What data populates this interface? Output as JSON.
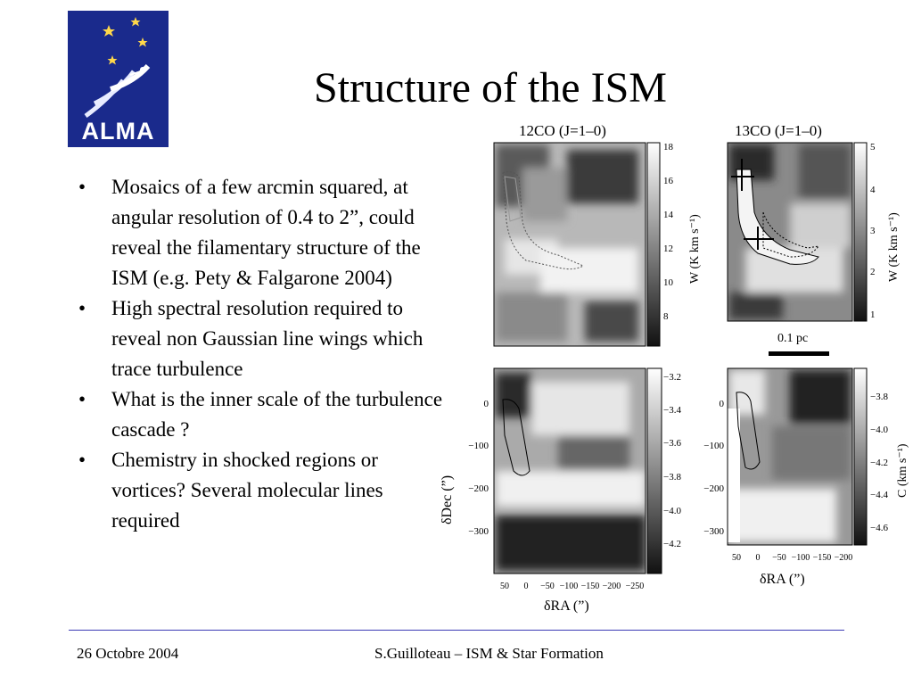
{
  "logo": {
    "text": "ALMA"
  },
  "title": "Structure of the ISM",
  "bullets": [
    "Mosaics of a few arcmin squared, at angular resolution of 0.4 to 2”, could reveal the filamentary structure of the ISM (e.g. Pety & Falgarone 2004)",
    "High spectral resolution required to reveal non Gaussian line wings which trace turbulence",
    "What is the inner scale of the turbulence cascade ?",
    "Chemistry in shocked regions or vortices? Several molecular lines required"
  ],
  "figure": {
    "panel_12co": {
      "title": "12CO (J=1–0)",
      "cbar_ticks": [
        "18",
        "16",
        "14",
        "12",
        "10",
        "8"
      ],
      "cbar_label": "W (K km s⁻¹)"
    },
    "panel_13co": {
      "title": "13CO (J=1–0)",
      "cbar_ticks": [
        "5",
        "4",
        "3",
        "2",
        "1"
      ],
      "cbar_label": "W (K km s⁻¹)"
    },
    "scale_bar": "0.1 pc",
    "panel_c_left": {
      "cbar_ticks": [
        "−3.2",
        "−3.4",
        "−3.6",
        "−3.8",
        "−4.0",
        "−4.2"
      ]
    },
    "panel_c_right": {
      "cbar_ticks": [
        "−3.8",
        "−4.0",
        "−4.2",
        "−4.4",
        "−4.6"
      ],
      "cbar_label": "C (km s⁻¹)"
    },
    "y_ticks": [
      "0",
      "−100",
      "−200",
      "−300"
    ],
    "y_label": "δDec (”)",
    "x_ticks_left": [
      "50",
      "0",
      "−50",
      "−100",
      "−150",
      "−200",
      "−250"
    ],
    "x_ticks_right": [
      "50",
      "0",
      "−50",
      "−100",
      "−150",
      "−200"
    ],
    "x_label": "δRA (”)"
  },
  "footer": {
    "date": "26 Octobre 2004",
    "author": "S.Guilloteau – ISM & Star Formation"
  }
}
